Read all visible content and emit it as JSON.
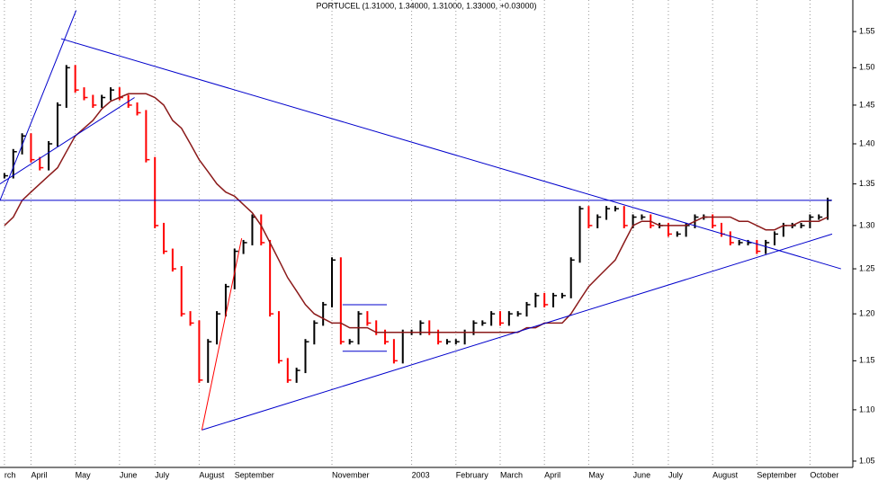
{
  "chart_data": {
    "type": "price-bars",
    "title": "PORTUCEL (1.31000, 1.34000, 1.31000, 1.33000, +0.03000)",
    "log_scale": true,
    "grid": true,
    "up_color": "#000000",
    "down_color": "#ff0000",
    "categories": [
      "rch",
      null,
      null,
      "April",
      null,
      null,
      null,
      null,
      "May",
      null,
      null,
      null,
      null,
      "June",
      null,
      null,
      null,
      "July",
      null,
      null,
      null,
      null,
      "August",
      null,
      null,
      null,
      "September",
      null,
      null,
      null,
      null,
      null,
      null,
      null,
      null,
      null,
      null,
      "November",
      null,
      null,
      null,
      null,
      null,
      null,
      null,
      null,
      "2003",
      null,
      null,
      null,
      null,
      "February",
      null,
      null,
      null,
      null,
      "March",
      null,
      null,
      null,
      null,
      "April",
      null,
      null,
      null,
      null,
      "May",
      null,
      null,
      null,
      null,
      "June",
      null,
      null,
      null,
      "July",
      null,
      null,
      null,
      null,
      "August",
      null,
      null,
      null,
      null,
      "September",
      null,
      null,
      null,
      null,
      null,
      "October",
      null,
      null
    ],
    "values": [
      1.36,
      1.39,
      1.41,
      1.38,
      1.37,
      1.4,
      1.45,
      1.5,
      1.47,
      1.46,
      1.45,
      1.46,
      1.47,
      1.46,
      1.45,
      1.44,
      1.38,
      1.3,
      1.27,
      1.25,
      1.2,
      1.19,
      1.13,
      1.17,
      1.2,
      1.23,
      1.27,
      1.28,
      1.31,
      1.28,
      1.2,
      1.15,
      1.13,
      1.14,
      1.17,
      1.19,
      1.21,
      1.26,
      1.17,
      1.17,
      1.2,
      1.19,
      1.18,
      1.17,
      1.15,
      1.18,
      1.18,
      1.19,
      1.18,
      1.17,
      1.17,
      1.17,
      1.18,
      1.19,
      1.19,
      1.2,
      1.19,
      1.2,
      1.2,
      1.21,
      1.22,
      1.21,
      1.22,
      1.22,
      1.26,
      1.32,
      1.3,
      1.31,
      1.32,
      1.32,
      1.3,
      1.31,
      1.31,
      1.3,
      1.3,
      1.29,
      1.29,
      1.3,
      1.31,
      1.31,
      1.3,
      1.29,
      1.28,
      1.28,
      1.28,
      1.27,
      1.28,
      1.29,
      1.3,
      1.3,
      1.3,
      1.31,
      1.31,
      1.33
    ],
    "moving_average": {
      "color": "#8b1a1a",
      "values": [
        1.3,
        1.31,
        1.33,
        1.34,
        1.35,
        1.36,
        1.37,
        1.39,
        1.41,
        1.42,
        1.43,
        1.445,
        1.455,
        1.46,
        1.465,
        1.465,
        1.465,
        1.46,
        1.45,
        1.43,
        1.42,
        1.4,
        1.38,
        1.365,
        1.35,
        1.34,
        1.335,
        1.325,
        1.315,
        1.3,
        1.28,
        1.26,
        1.24,
        1.225,
        1.21,
        1.2,
        1.195,
        1.19,
        1.19,
        1.185,
        1.185,
        1.185,
        1.18,
        1.18,
        1.18,
        1.18,
        1.18,
        1.18,
        1.18,
        1.18,
        1.18,
        1.18,
        1.18,
        1.18,
        1.18,
        1.18,
        1.18,
        1.18,
        1.18,
        1.185,
        1.185,
        1.19,
        1.19,
        1.19,
        1.2,
        1.215,
        1.23,
        1.24,
        1.25,
        1.26,
        1.28,
        1.3,
        1.305,
        1.305,
        1.3,
        1.3,
        1.3,
        1.3,
        1.305,
        1.31,
        1.31,
        1.31,
        1.31,
        1.305,
        1.305,
        1.3,
        1.295,
        1.295,
        1.3,
        1.3,
        1.305,
        1.305,
        1.305,
        1.31
      ]
    },
    "trendlines": [
      {
        "color": "#0000cc",
        "x": [
          6.4,
          94.5
        ],
        "y": [
          1.54,
          1.25
        ]
      },
      {
        "color": "#0000cc",
        "x": [
          -0.5,
          93.5
        ],
        "y": [
          1.33,
          1.33
        ]
      },
      {
        "color": "#0000cc",
        "x": [
          22.3,
          93.5
        ],
        "y": [
          1.08,
          1.29
        ]
      },
      {
        "color": "#ff0000",
        "x": [
          22.3,
          26.8
        ],
        "y": [
          1.08,
          1.285
        ]
      },
      {
        "color": "#0000cc",
        "x": [
          -0.5,
          8.1
        ],
        "y": [
          1.33,
          1.58
        ]
      },
      {
        "color": "#0000cc",
        "x": [
          -0.5,
          14.7
        ],
        "y": [
          1.35,
          1.46
        ]
      },
      {
        "color": "#0000cc",
        "x": [
          38.2,
          43.2
        ],
        "y": [
          1.21,
          1.21
        ]
      },
      {
        "color": "#0000cc",
        "x": [
          38.2,
          43.2
        ],
        "y": [
          1.16,
          1.16
        ]
      }
    ],
    "ylim": [
      1.044,
      1.595
    ],
    "yticks": [
      1.05,
      {
        "value": 1.1,
        "label": "1.10"
      },
      1.15,
      {
        "value": 1.2,
        "label": "1.20"
      },
      1.25,
      {
        "value": 1.3,
        "label": "1.30"
      },
      1.35,
      {
        "value": 1.4,
        "label": "1.40"
      },
      1.45,
      {
        "value": 1.5,
        "label": "1.50"
      },
      1.55
    ]
  }
}
